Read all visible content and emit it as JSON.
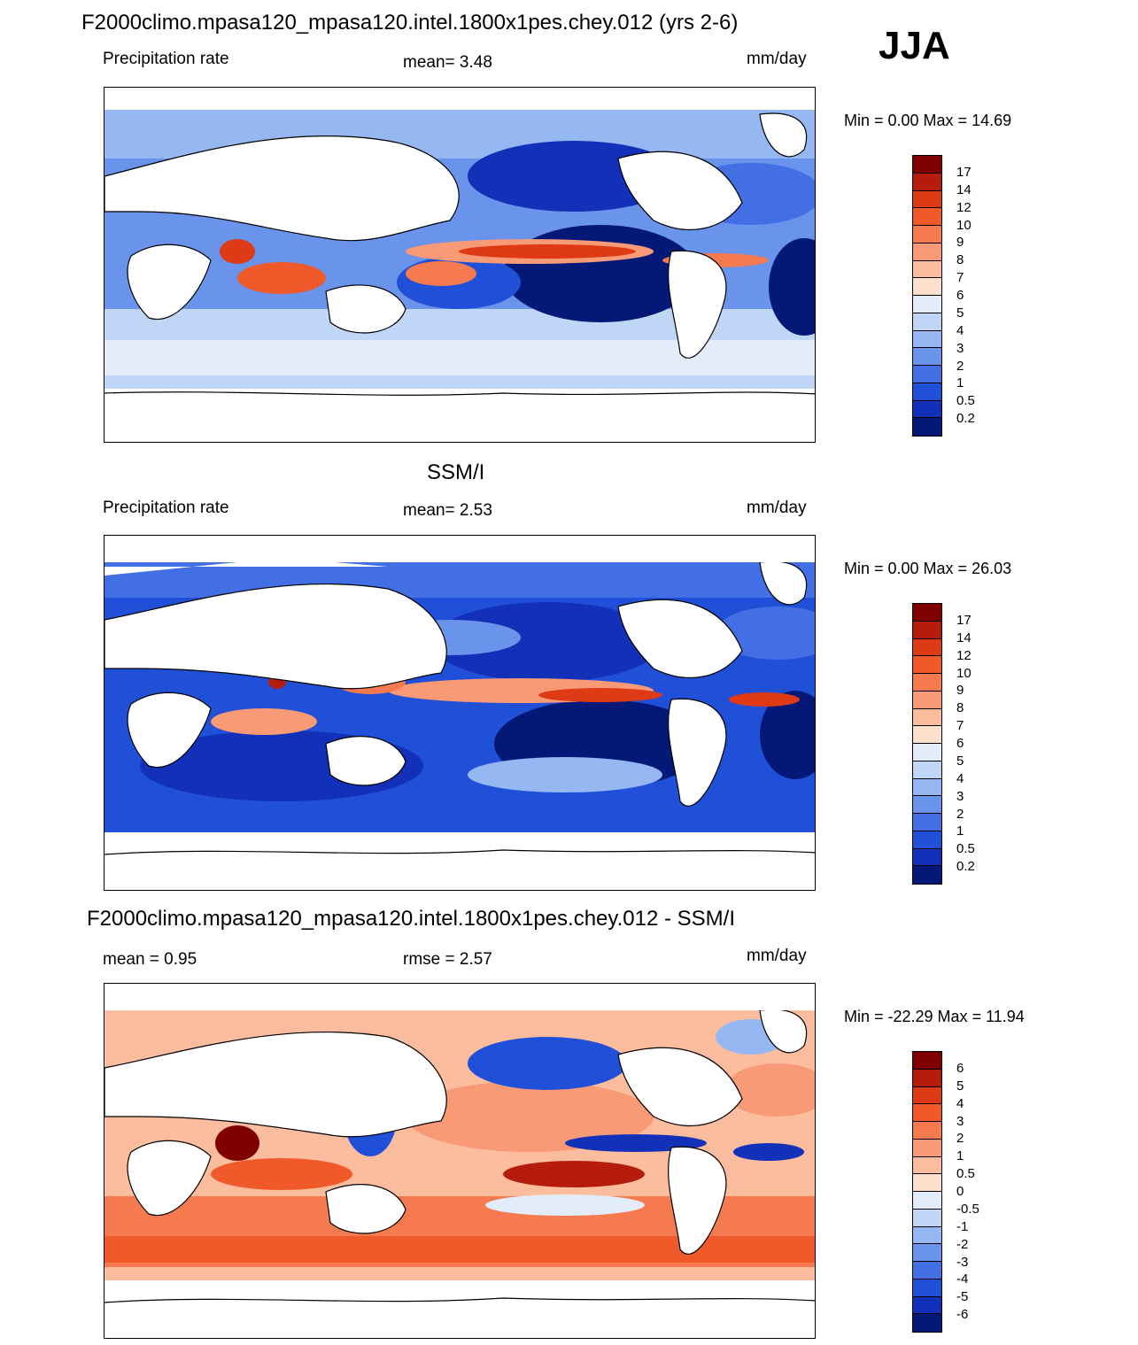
{
  "figure": {
    "season": "JJA"
  },
  "panels": [
    {
      "id": "model",
      "title": "F2000climo.mpasa120_mpasa120.intel.1800x1pes.chey.012 (yrs 2-6)",
      "left_label": "Precipitation rate",
      "center_label": "mean=   3.48",
      "right_label": "mm/day",
      "minmax": "Min =   0.00 Max =  14.69",
      "colorbar": "precip"
    },
    {
      "id": "obs",
      "title": "SSM/I",
      "left_label": "Precipitation rate",
      "center_label": "mean=   2.53",
      "right_label": "mm/day",
      "minmax": "Min =   0.00 Max =  26.03",
      "colorbar": "precip"
    },
    {
      "id": "diff",
      "title": "F2000climo.mpasa120_mpasa120.intel.1800x1pes.chey.012 - SSM/I",
      "left_label": "mean =   0.95",
      "center_label": "rmse =   2.57",
      "right_label": "mm/day",
      "minmax": "Min = -22.29 Max =  11.94",
      "colorbar": "diff"
    }
  ],
  "colorbars": {
    "precip": {
      "ticks": [
        "17",
        "14",
        "12",
        "10",
        "9",
        "8",
        "7",
        "6",
        "5",
        "4",
        "3",
        "2",
        "1",
        "0.5",
        "0.2"
      ],
      "colors": [
        "#800000",
        "#b51c0c",
        "#dd3a15",
        "#f05a2a",
        "#f57a50",
        "#f99a76",
        "#fcbc9e",
        "#fde0cc",
        "#e3ecfa",
        "#c0d6f6",
        "#95b7f2",
        "#6a93ec",
        "#4270e4",
        "#2150d8",
        "#1230b8",
        "#041878"
      ]
    },
    "diff": {
      "ticks": [
        "6",
        "5",
        "4",
        "3",
        "2",
        "1",
        "0.5",
        "0",
        "-0.5",
        "-1",
        "-2",
        "-3",
        "-4",
        "-5",
        "-6"
      ],
      "colors": [
        "#800000",
        "#b51c0c",
        "#dd3a15",
        "#f05a2a",
        "#f57a50",
        "#f99a76",
        "#fcbc9e",
        "#fde0cc",
        "#e3ecfa",
        "#c0d6f6",
        "#95b7f2",
        "#6a93ec",
        "#4270e4",
        "#2150d8",
        "#1230b8",
        "#041878"
      ]
    }
  }
}
